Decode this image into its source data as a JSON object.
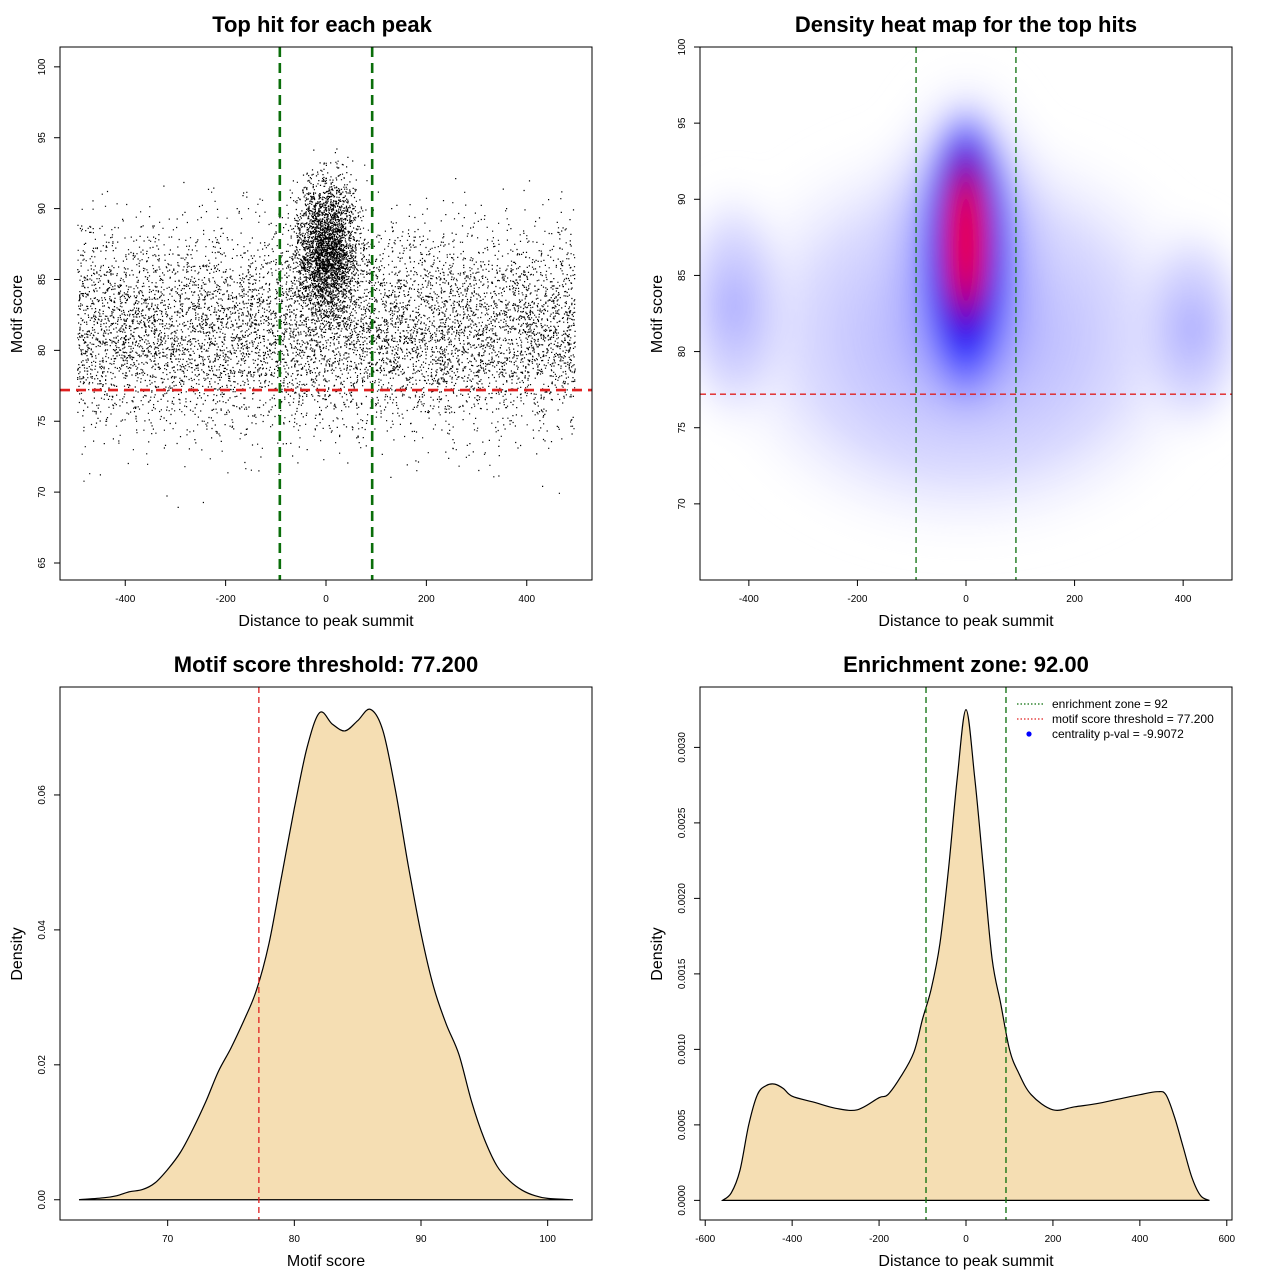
{
  "chart_data": [
    {
      "id": "scatter",
      "type": "scatter",
      "title": "Top hit for each peak",
      "xlabel": "Distance to peak summit",
      "ylabel": "Motif score",
      "xlim": [
        -530,
        530
      ],
      "ylim": [
        63.8,
        101.4
      ],
      "xticks": [
        "-400",
        "-200",
        "0",
        "200",
        "400"
      ],
      "yticks": [
        "65",
        "70",
        "75",
        "80",
        "85",
        "90",
        "95",
        "100"
      ],
      "grid": false,
      "point_cloud": {
        "x_range": [
          -496,
          496
        ],
        "background_y_mean": 81.5,
        "background_y_sd": 6.2,
        "central_cluster_x_sd": 42,
        "central_cluster_y_mean": 87.2,
        "central_cluster_y_sd": 3.3,
        "points_shown_approx": 11000
      },
      "reference_lines": [
        {
          "orientation": "vertical",
          "value": -92,
          "color": "#0a6e0a",
          "style": "dashed"
        },
        {
          "orientation": "vertical",
          "value": 92,
          "color": "#0a6e0a",
          "style": "dashed"
        },
        {
          "orientation": "horizontal",
          "value": 77.2,
          "color": "#e02020",
          "style": "dashed"
        }
      ]
    },
    {
      "id": "heatmap",
      "type": "heatmap",
      "title": "Density heat map for the top hits",
      "xlabel": "Distance to peak summit",
      "ylabel": "Motif score",
      "xlim": [
        -490,
        490
      ],
      "ylim": [
        65,
        100
      ],
      "xticks": [
        "-400",
        "-200",
        "0",
        "200",
        "400"
      ],
      "yticks": [
        "70",
        "75",
        "80",
        "85",
        "90",
        "95",
        "100"
      ],
      "color_scale": [
        "#ffffff",
        "#8888ff",
        "#0000ff",
        "#ff0000"
      ],
      "density_peak": {
        "x": 0,
        "y": 87.5
      },
      "reference_lines": [
        {
          "orientation": "vertical",
          "value": -92,
          "color": "#0a6e0a",
          "style": "dashed"
        },
        {
          "orientation": "vertical",
          "value": 92,
          "color": "#0a6e0a",
          "style": "dashed"
        },
        {
          "orientation": "horizontal",
          "value": 77.2,
          "color": "#e02020",
          "style": "dashed"
        }
      ]
    },
    {
      "id": "score-density",
      "type": "area",
      "title": "Motif score threshold: 77.200",
      "xlabel": "Motif score",
      "ylabel": "Density",
      "xlim": [
        61.5,
        103.5
      ],
      "ylim": [
        -0.003,
        0.076
      ],
      "xticks": [
        "70",
        "80",
        "90",
        "100"
      ],
      "yticks": [
        "0.00",
        "0.02",
        "0.04",
        "0.06"
      ],
      "fill": "#f5deb3",
      "x": [
        63,
        65,
        66,
        67,
        68,
        69,
        70,
        71,
        72,
        73,
        74,
        75,
        76,
        77,
        78,
        79,
        80,
        81,
        82,
        83,
        84,
        85,
        86,
        87,
        88,
        89,
        90,
        91,
        92,
        93,
        94,
        95,
        96,
        97,
        98,
        99,
        100,
        102
      ],
      "y": [
        0.0,
        0.0003,
        0.0006,
        0.0012,
        0.0015,
        0.0025,
        0.0045,
        0.007,
        0.0105,
        0.0145,
        0.019,
        0.0225,
        0.0265,
        0.031,
        0.038,
        0.048,
        0.058,
        0.067,
        0.0722,
        0.0705,
        0.0695,
        0.071,
        0.0727,
        0.0695,
        0.0605,
        0.0495,
        0.0395,
        0.0315,
        0.026,
        0.0215,
        0.0145,
        0.009,
        0.005,
        0.0028,
        0.0014,
        0.0006,
        0.0002,
        0.0
      ],
      "reference_lines": [
        {
          "orientation": "vertical",
          "value": 77.2,
          "color": "#e02020",
          "style": "dashed"
        }
      ]
    },
    {
      "id": "position-density",
      "type": "area",
      "title": "Enrichment zone: 92.00",
      "xlabel": "Distance to peak summit",
      "ylabel": "Density",
      "xlim": [
        -612,
        612
      ],
      "ylim": [
        -0.00013,
        0.0034
      ],
      "xticks": [
        "-600",
        "-400",
        "-200",
        "0",
        "200",
        "400",
        "600"
      ],
      "yticks": [
        "0.0000",
        "0.0005",
        "0.0010",
        "0.0015",
        "0.0020",
        "0.0025",
        "0.0030"
      ],
      "fill": "#f5deb3",
      "x": [
        -560,
        -540,
        -520,
        -500,
        -480,
        -460,
        -440,
        -420,
        -400,
        -350,
        -300,
        -250,
        -200,
        -180,
        -150,
        -120,
        -100,
        -80,
        -60,
        -40,
        -20,
        0,
        20,
        40,
        60,
        80,
        100,
        120,
        150,
        200,
        250,
        300,
        350,
        400,
        440,
        460,
        480,
        500,
        520,
        540,
        560
      ],
      "y": [
        0.0,
        5e-05,
        0.0002,
        0.0005,
        0.0007,
        0.00076,
        0.00077,
        0.00074,
        0.00069,
        0.00065,
        0.00061,
        0.0006,
        0.00068,
        0.0007,
        0.00082,
        0.00098,
        0.0012,
        0.0014,
        0.0017,
        0.0022,
        0.0028,
        0.00325,
        0.0028,
        0.0022,
        0.0016,
        0.0013,
        0.001,
        0.00085,
        0.0007,
        0.0006,
        0.00062,
        0.00064,
        0.00067,
        0.0007,
        0.00072,
        0.0007,
        0.00055,
        0.00035,
        0.00015,
        3e-05,
        0.0
      ],
      "reference_lines": [
        {
          "orientation": "vertical",
          "value": -92,
          "color": "#0a6e0a",
          "style": "dashed"
        },
        {
          "orientation": "vertical",
          "value": 92,
          "color": "#0a6e0a",
          "style": "dashed"
        }
      ],
      "legend": {
        "position": "top-right",
        "entries": [
          {
            "label": "enrichment zone = 92",
            "color": "#0a6e0a",
            "marker": "dotted-line"
          },
          {
            "label": "motif score threshold = 77.200",
            "color": "#e02020",
            "marker": "dotted-line"
          },
          {
            "label": "centrality p-val = -9.9072",
            "color": "#0000ff",
            "marker": "dot"
          }
        ]
      }
    }
  ]
}
